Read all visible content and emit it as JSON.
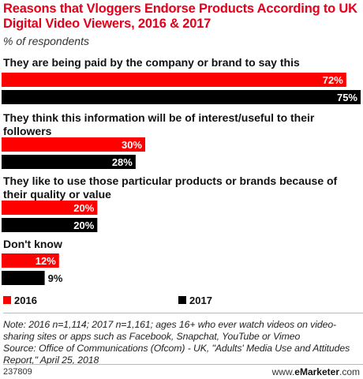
{
  "chart_data": {
    "type": "bar",
    "orientation": "horizontal",
    "title": "Reasons that Vloggers Endorse Products According to UK Digital Video Viewers, 2016 & 2017",
    "subtitle": "% of respondents",
    "categories": [
      "They are being paid by the company or brand to say this",
      "They think this information will be of interest/useful to their followers",
      "They like to use those particular products or brands because of their quality or value",
      "Don't know"
    ],
    "series": [
      {
        "name": "2016",
        "color": "#ff0000",
        "values": [
          72,
          30,
          20,
          12
        ],
        "labels": [
          "72%",
          "30%",
          "20%",
          "12%"
        ]
      },
      {
        "name": "2017",
        "color": "#000000",
        "values": [
          75,
          28,
          20,
          9
        ],
        "labels": [
          "75%",
          "28%",
          "20%",
          "9%"
        ]
      }
    ],
    "xlim": [
      0,
      75
    ],
    "grid": false,
    "legend_position": "bottom"
  },
  "note": "Note: 2016 n=1,114; 2017 n=1,161; ages 16+ who ever watch videos on video-sharing sites or apps such as Facebook, Snapchat, YouTube or Vimeo",
  "source": "Source: Office of Communications (Ofcom) - UK, \"Adults' Media Use and Attitudes Report,\" April 25, 2018",
  "chart_id": "237809",
  "brand": {
    "prefix": "www.",
    "name": "eMarketer",
    "suffix": ".com"
  }
}
